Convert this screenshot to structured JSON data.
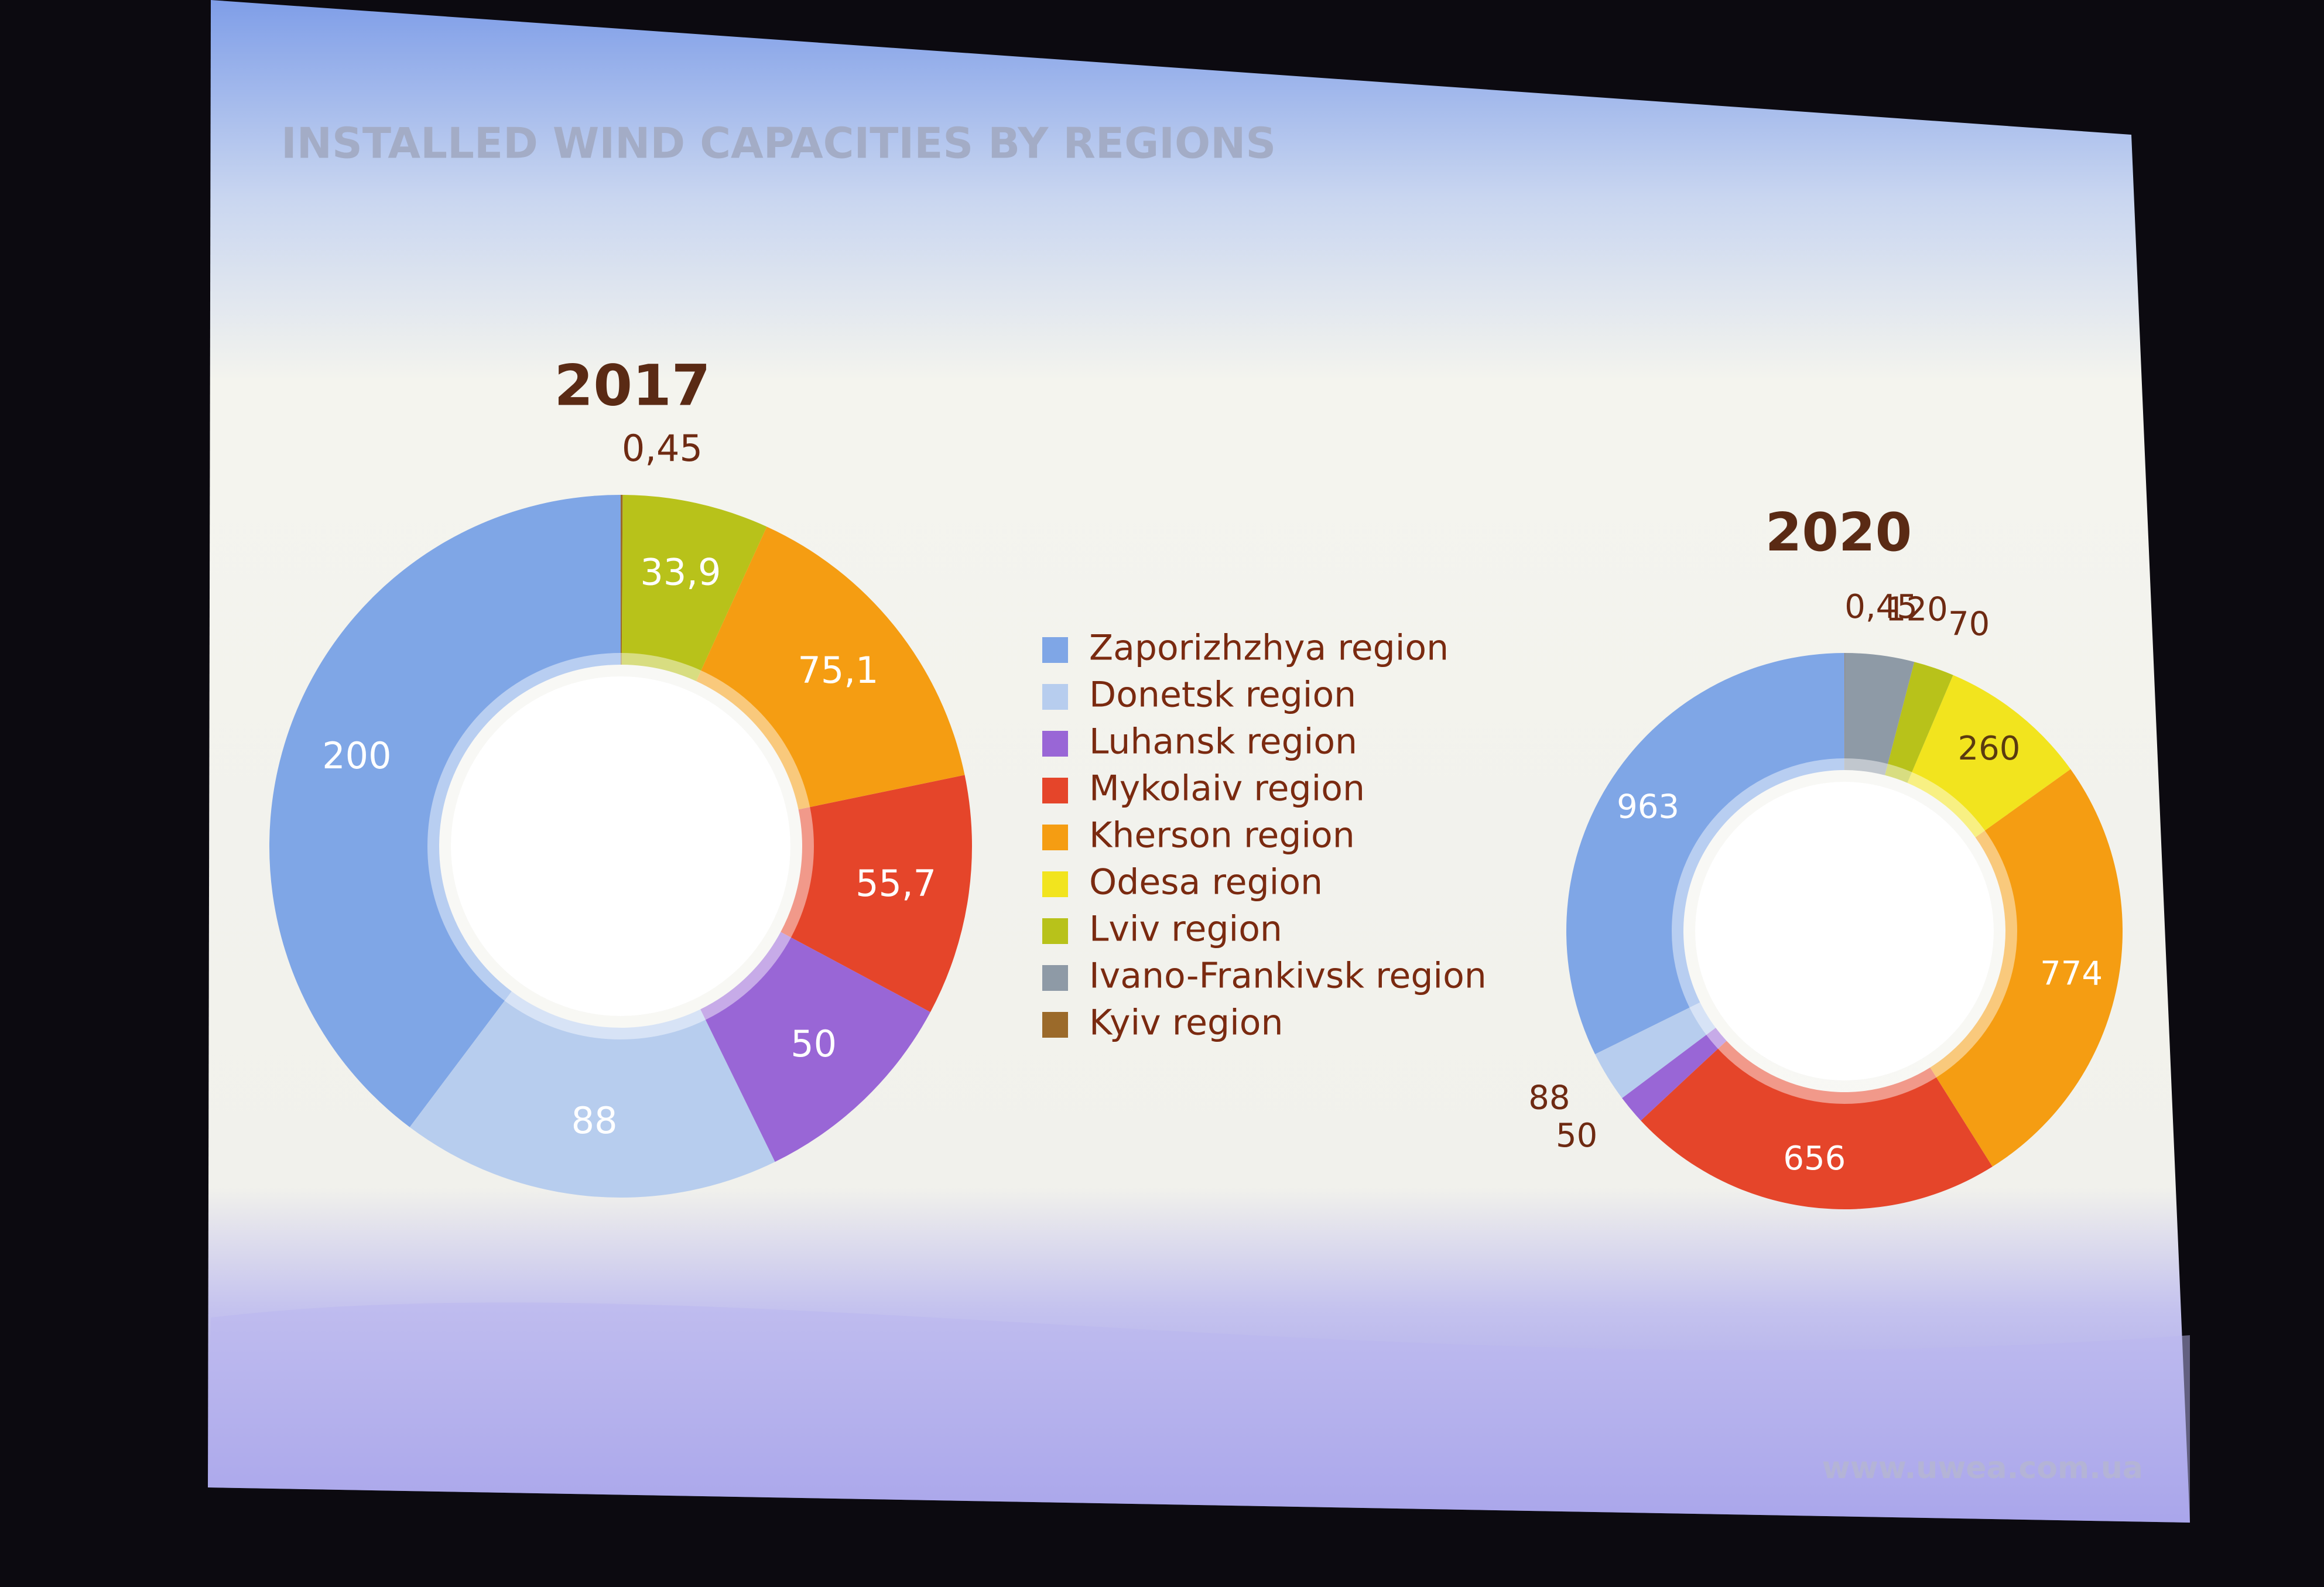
{
  "title": "INSTALLED WIND CAPACITIES BY REGIONS",
  "footer": "www.uwea.com.ua",
  "chart_data": [
    {
      "type": "pie",
      "title": "2017",
      "categories": [
        "Zaporizhzhya  region",
        "Donetsk region",
        "Luhansk region",
        "Mykolaiv region",
        "Kherson region",
        "Lviv region",
        "Kyiv region"
      ],
      "values": [
        200,
        88,
        50,
        55.7,
        75.1,
        33.9,
        0.45
      ],
      "value_labels": [
        "200",
        "88",
        "50",
        "55,7",
        "75,1",
        "33,9",
        "0,45"
      ],
      "colors": [
        "#7fa6e6",
        "#b7cdee",
        "#9966d6",
        "#e5452a",
        "#f59d12",
        "#b8c21a",
        "#9b6a2a"
      ]
    },
    {
      "type": "pie",
      "title": "2020",
      "categories": [
        "Zaporizhzhya  region",
        "Donetsk region",
        "Luhansk region",
        "Mykolaiv region",
        "Kherson region",
        "Odesa region",
        "Lviv region",
        "Ivano-Frankivsk region",
        "Kyiv region"
      ],
      "values": [
        963,
        88,
        50,
        656,
        774,
        260,
        70,
        120,
        0.45
      ],
      "value_labels": [
        "963",
        "88",
        "50",
        "656",
        "774",
        "260",
        "70",
        "120",
        "0,45"
      ],
      "colors": [
        "#7fa6e6",
        "#b7cdee",
        "#9966d6",
        "#e5452a",
        "#f59d12",
        "#f2e41e",
        "#b8c21a",
        "#8e9aa6",
        "#9b6a2a"
      ]
    }
  ]
}
